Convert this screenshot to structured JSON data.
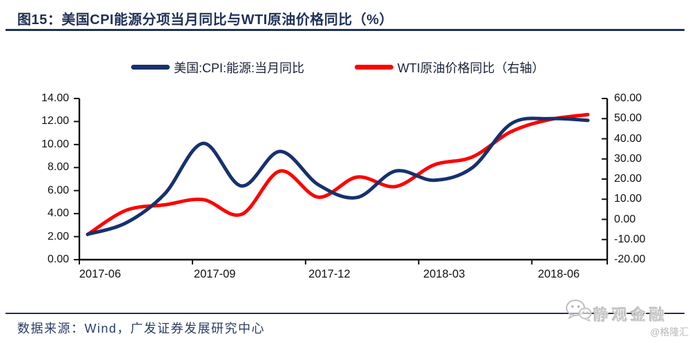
{
  "figure": {
    "title": "图15：美国CPI能源分项当月同比与WTI原油价格同比（%）",
    "source": "数据来源：Wind，广发证券发展研究中心"
  },
  "watermark": {
    "brand": "静观金融",
    "handle": "@格隆汇",
    "icon": "wechat-icon"
  },
  "colors": {
    "navy_line": "#16316d",
    "red_line": "#fe0000",
    "title_navy": "#1f3157",
    "axis_black": "#111111",
    "watermark_gray": "#c9c9c9"
  },
  "chart_data": {
    "type": "line",
    "title": "美国CPI能源分项当月同比与WTI原油价格同比（%）",
    "x": [
      "2017-06",
      "2017-07",
      "2017-08",
      "2017-09",
      "2017-10",
      "2017-11",
      "2017-12",
      "2018-01",
      "2018-02",
      "2018-03",
      "2018-04",
      "2018-05",
      "2018-06",
      "2018-07"
    ],
    "x_tick_labels": [
      "2017-06",
      "2017-09",
      "2017-12",
      "2018-03",
      "2018-06"
    ],
    "x_tick_month_indices": [
      0,
      3,
      6,
      9,
      12
    ],
    "series": [
      {
        "name": "美国:CPI:能源:当月同比",
        "axis": "left",
        "color": "#16316d",
        "values": [
          2.2,
          3.2,
          5.7,
          10.1,
          6.4,
          9.4,
          6.5,
          5.4,
          7.7,
          6.9,
          8.0,
          11.8,
          12.25,
          12.1
        ]
      },
      {
        "name": "WTI原油价格同比（右轴）",
        "axis": "right",
        "color": "#fe0000",
        "values": [
          -7.5,
          4.5,
          7.2,
          9.8,
          2.5,
          24.0,
          11.0,
          21.0,
          16.3,
          27.0,
          31.0,
          43.5,
          49.5,
          52.0
        ]
      }
    ],
    "left_axis": {
      "min": 0,
      "max": 14,
      "step": 2,
      "labels": [
        "14.00",
        "12.00",
        "10.00",
        "8.00",
        "6.00",
        "4.00",
        "2.00",
        "0.00"
      ]
    },
    "right_axis": {
      "min": -20,
      "max": 60,
      "step": 10,
      "labels": [
        "60.00",
        "50.00",
        "40.00",
        "30.00",
        "20.00",
        "10.00",
        "0.00",
        "-10.00",
        "-20.00"
      ]
    },
    "legend_position": "top",
    "grid": false
  }
}
